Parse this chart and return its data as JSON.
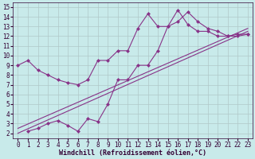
{
  "xlabel": "Windchill (Refroidissement éolien,°C)",
  "background_color": "#c8eaea",
  "grid_color": "#b0c8c8",
  "line_color": "#883388",
  "xlim": [
    -0.5,
    23.5
  ],
  "ylim": [
    1.5,
    15.5
  ],
  "xticks": [
    0,
    1,
    2,
    3,
    4,
    5,
    6,
    7,
    8,
    9,
    10,
    11,
    12,
    13,
    14,
    15,
    16,
    17,
    18,
    19,
    20,
    21,
    22,
    23
  ],
  "yticks": [
    2,
    3,
    4,
    5,
    6,
    7,
    8,
    9,
    10,
    11,
    12,
    13,
    14,
    15
  ],
  "line1_x": [
    0,
    1,
    2,
    3,
    4,
    5,
    6,
    7,
    8,
    9,
    10,
    11,
    12,
    13,
    14,
    15,
    16,
    17,
    18,
    19,
    20,
    21,
    22,
    23
  ],
  "line1_y": [
    9.0,
    9.5,
    8.5,
    8.0,
    7.5,
    7.2,
    7.0,
    7.5,
    9.5,
    9.5,
    10.5,
    10.5,
    12.8,
    14.3,
    13.0,
    13.0,
    14.7,
    13.2,
    12.5,
    12.5,
    12.0,
    12.0,
    12.2,
    12.2
  ],
  "line2_x": [
    1,
    2,
    3,
    4,
    5,
    6,
    7,
    8,
    9,
    10,
    11,
    12,
    13,
    14,
    15,
    16,
    17,
    18,
    19,
    20,
    21,
    22,
    23
  ],
  "line2_y": [
    2.2,
    2.5,
    3.0,
    3.3,
    2.8,
    2.2,
    3.5,
    3.2,
    5.0,
    7.5,
    7.5,
    9.0,
    9.0,
    10.5,
    13.0,
    13.5,
    14.5,
    13.5,
    12.8,
    12.5,
    12.0,
    12.0,
    12.2
  ],
  "line3_x": [
    0,
    23
  ],
  "line3_y": [
    2.0,
    12.5
  ],
  "line4_x": [
    0,
    23
  ],
  "line4_y": [
    2.5,
    12.8
  ],
  "marker_size": 2.5,
  "line_width": 0.8,
  "font_size_label": 6,
  "font_size_tick": 5.5
}
